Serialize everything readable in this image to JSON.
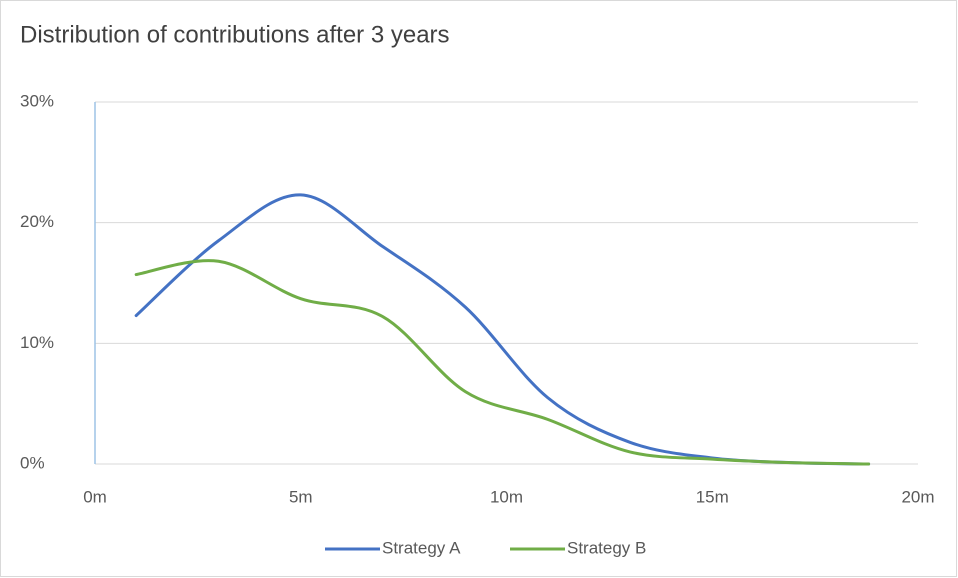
{
  "chart_data": {
    "type": "line",
    "title": "Distribution of contributions after 3 years",
    "x": [
      1,
      3,
      5,
      7,
      9,
      11,
      13,
      15,
      17,
      18.8
    ],
    "series": [
      {
        "name": "Strategy A",
        "color": "#4472c4",
        "values": [
          12.3,
          18.5,
          22.3,
          18,
          13,
          5.5,
          1.8,
          0.5,
          0.1,
          0
        ]
      },
      {
        "name": "Strategy B",
        "color": "#70ad47",
        "values": [
          15.7,
          16.8,
          13.7,
          12.2,
          6,
          3.7,
          1,
          0.4,
          0.1,
          0
        ]
      }
    ],
    "xlim": [
      0,
      20
    ],
    "xticks": [
      {
        "value": 0,
        "label": "0m"
      },
      {
        "value": 5,
        "label": "5m"
      },
      {
        "value": 10,
        "label": "10m"
      },
      {
        "value": 15,
        "label": "15m"
      },
      {
        "value": 20,
        "label": "20m"
      }
    ],
    "ylim": [
      0,
      30
    ],
    "yticks": [
      {
        "value": 0,
        "label": "0%"
      },
      {
        "value": 10,
        "label": "10%"
      },
      {
        "value": 20,
        "label": "20%"
      },
      {
        "value": 30,
        "label": "30%"
      }
    ],
    "grid": true,
    "legend": "bottom"
  }
}
